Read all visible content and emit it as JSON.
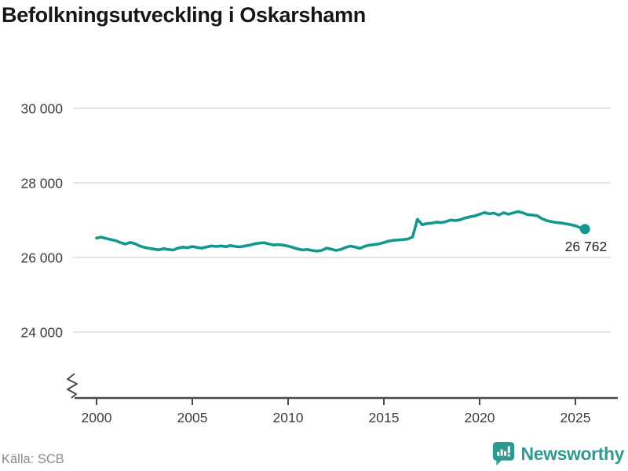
{
  "title": "Befolkningsutveckling i Oskarshamn",
  "chart_data": {
    "type": "line",
    "title": "Befolkningsutveckling i Oskarshamn",
    "xlabel": "",
    "ylabel": "",
    "grid": "horizontal",
    "legend": "none",
    "axis_break": true,
    "xlim": [
      1998.9,
      2027.2
    ],
    "ylim": [
      22200,
      30700
    ],
    "x_ticks": [
      "2000",
      "2005",
      "2010",
      "2015",
      "2020",
      "2025"
    ],
    "y_ticks": [
      {
        "value": 30000,
        "label": "30 000"
      },
      {
        "value": 28000,
        "label": "28 000"
      },
      {
        "value": 26000,
        "label": "26 000"
      },
      {
        "value": 24000,
        "label": "24 000"
      }
    ],
    "end_label": "26 762",
    "end_value": 26762,
    "series": [
      {
        "name": "Folkmängd Oskarshamn",
        "points": [
          [
            2000.0,
            26520
          ],
          [
            2000.25,
            26545
          ],
          [
            2000.5,
            26510
          ],
          [
            2000.75,
            26480
          ],
          [
            2001.0,
            26450
          ],
          [
            2001.25,
            26400
          ],
          [
            2001.5,
            26360
          ],
          [
            2001.75,
            26405
          ],
          [
            2002.0,
            26370
          ],
          [
            2002.25,
            26310
          ],
          [
            2002.5,
            26270
          ],
          [
            2002.75,
            26245
          ],
          [
            2003.0,
            26225
          ],
          [
            2003.25,
            26205
          ],
          [
            2003.5,
            26235
          ],
          [
            2003.75,
            26215
          ],
          [
            2004.0,
            26200
          ],
          [
            2004.25,
            26250
          ],
          [
            2004.5,
            26280
          ],
          [
            2004.75,
            26260
          ],
          [
            2005.0,
            26295
          ],
          [
            2005.25,
            26270
          ],
          [
            2005.5,
            26250
          ],
          [
            2005.75,
            26285
          ],
          [
            2006.0,
            26310
          ],
          [
            2006.25,
            26295
          ],
          [
            2006.5,
            26310
          ],
          [
            2006.75,
            26290
          ],
          [
            2007.0,
            26320
          ],
          [
            2007.25,
            26295
          ],
          [
            2007.5,
            26285
          ],
          [
            2007.75,
            26310
          ],
          [
            2008.0,
            26330
          ],
          [
            2008.25,
            26365
          ],
          [
            2008.5,
            26385
          ],
          [
            2008.75,
            26395
          ],
          [
            2009.0,
            26365
          ],
          [
            2009.25,
            26335
          ],
          [
            2009.5,
            26345
          ],
          [
            2009.75,
            26330
          ],
          [
            2010.0,
            26305
          ],
          [
            2010.25,
            26270
          ],
          [
            2010.5,
            26230
          ],
          [
            2010.75,
            26200
          ],
          [
            2011.0,
            26215
          ],
          [
            2011.25,
            26190
          ],
          [
            2011.5,
            26170
          ],
          [
            2011.75,
            26190
          ],
          [
            2012.0,
            26250
          ],
          [
            2012.25,
            26225
          ],
          [
            2012.5,
            26190
          ],
          [
            2012.75,
            26215
          ],
          [
            2013.0,
            26270
          ],
          [
            2013.25,
            26305
          ],
          [
            2013.5,
            26280
          ],
          [
            2013.75,
            26245
          ],
          [
            2014.0,
            26300
          ],
          [
            2014.25,
            26330
          ],
          [
            2014.5,
            26345
          ],
          [
            2014.75,
            26365
          ],
          [
            2015.0,
            26400
          ],
          [
            2015.25,
            26440
          ],
          [
            2015.5,
            26460
          ],
          [
            2015.75,
            26470
          ],
          [
            2016.0,
            26480
          ],
          [
            2016.25,
            26495
          ],
          [
            2016.5,
            26550
          ],
          [
            2016.75,
            27025
          ],
          [
            2017.0,
            26880
          ],
          [
            2017.25,
            26910
          ],
          [
            2017.5,
            26920
          ],
          [
            2017.75,
            26950
          ],
          [
            2018.0,
            26935
          ],
          [
            2018.25,
            26965
          ],
          [
            2018.5,
            27005
          ],
          [
            2018.75,
            26990
          ],
          [
            2019.0,
            27015
          ],
          [
            2019.25,
            27060
          ],
          [
            2019.5,
            27090
          ],
          [
            2019.75,
            27115
          ],
          [
            2020.0,
            27160
          ],
          [
            2020.25,
            27205
          ],
          [
            2020.5,
            27170
          ],
          [
            2020.75,
            27190
          ],
          [
            2021.0,
            27140
          ],
          [
            2021.25,
            27200
          ],
          [
            2021.5,
            27160
          ],
          [
            2021.75,
            27195
          ],
          [
            2022.0,
            27230
          ],
          [
            2022.25,
            27200
          ],
          [
            2022.5,
            27150
          ],
          [
            2022.75,
            27140
          ],
          [
            2023.0,
            27120
          ],
          [
            2023.25,
            27045
          ],
          [
            2023.5,
            26990
          ],
          [
            2023.75,
            26960
          ],
          [
            2024.0,
            26940
          ],
          [
            2024.25,
            26925
          ],
          [
            2024.5,
            26905
          ],
          [
            2024.75,
            26880
          ],
          [
            2025.0,
            26850
          ],
          [
            2025.25,
            26800
          ],
          [
            2025.5,
            26762
          ]
        ]
      }
    ]
  },
  "footer": {
    "source": "Källa: SCB",
    "brand": "Newsworthy"
  },
  "colors": {
    "line": "#12998b",
    "brand": "#2f9a91",
    "grid": "#e4e4e4",
    "axis": "#4a4a4a",
    "tick_label": "#3d3d3d",
    "title": "#161616",
    "source": "#8a8a8a",
    "annotation": "#222222"
  }
}
